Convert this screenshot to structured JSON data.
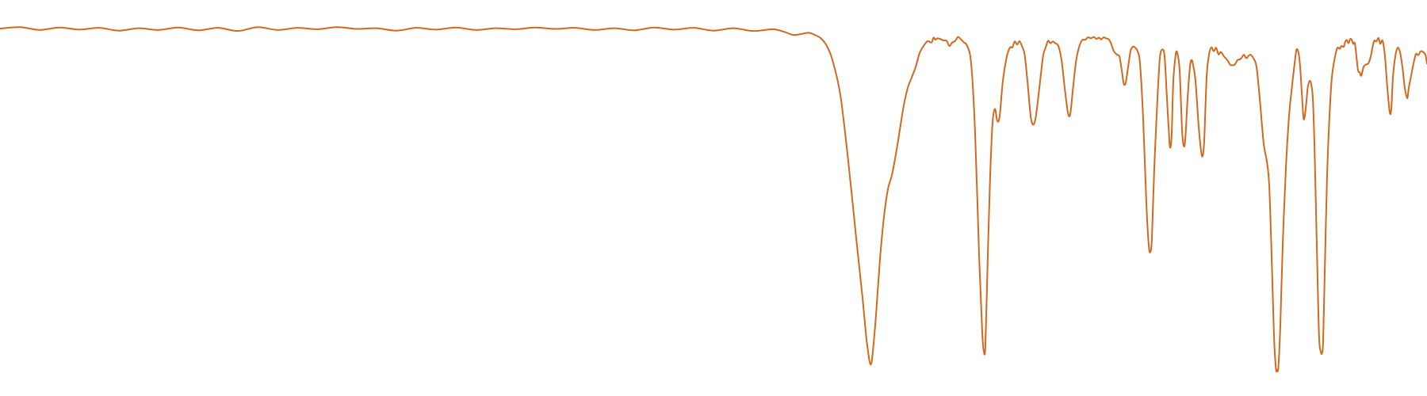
{
  "chart_data": {
    "type": "line",
    "title": "",
    "xlabel": "",
    "ylabel": "",
    "grid": false,
    "legend": "none",
    "xlim": [
      4000,
      400
    ],
    "ylim": [
      0,
      105
    ],
    "colors": {
      "trace": "#d2691e",
      "background": "#ffffff"
    },
    "series": [
      {
        "points": [
          [
            4000,
            100
          ],
          [
            3950,
            100.4
          ],
          [
            3900,
            99.6
          ],
          [
            3850,
            100.3
          ],
          [
            3800,
            99.7
          ],
          [
            3750,
            100.2
          ],
          [
            3700,
            99.4
          ],
          [
            3650,
            100.1
          ],
          [
            3600,
            99.6
          ],
          [
            3550,
            100.3
          ],
          [
            3500,
            99.5
          ],
          [
            3450,
            100.2
          ],
          [
            3400,
            99.3
          ],
          [
            3350,
            100.4
          ],
          [
            3300,
            99.6
          ],
          [
            3250,
            100.2
          ],
          [
            3200,
            99.8
          ],
          [
            3150,
            100.4
          ],
          [
            3100,
            99.9
          ],
          [
            3050,
            100.1
          ],
          [
            3000,
            99.4
          ],
          [
            2950,
            100.2
          ],
          [
            2900,
            99.7
          ],
          [
            2850,
            100.3
          ],
          [
            2800,
            99.6
          ],
          [
            2750,
            100.1
          ],
          [
            2700,
            99.8
          ],
          [
            2650,
            100.3
          ],
          [
            2600,
            99.9
          ],
          [
            2550,
            100.2
          ],
          [
            2500,
            99.6
          ],
          [
            2450,
            100.1
          ],
          [
            2400,
            99.5
          ],
          [
            2350,
            100.3
          ],
          [
            2300,
            99.7
          ],
          [
            2250,
            100.2
          ],
          [
            2200,
            99.4
          ],
          [
            2150,
            100.1
          ],
          [
            2100,
            99.3
          ],
          [
            2050,
            99.8
          ],
          [
            2020,
            99.0
          ],
          [
            2000,
            98.2
          ],
          [
            1980,
            98.4
          ],
          [
            1960,
            98.8
          ],
          [
            1945,
            98.2
          ],
          [
            1930,
            97.3
          ],
          [
            1915,
            95.2
          ],
          [
            1900,
            91
          ],
          [
            1880,
            81
          ],
          [
            1860,
            62
          ],
          [
            1840,
            40
          ],
          [
            1825,
            24
          ],
          [
            1815,
            12
          ],
          [
            1810,
            7.5
          ],
          [
            1806,
            4.5
          ],
          [
            1802,
            4.0
          ],
          [
            1798,
            7.5
          ],
          [
            1790,
            18
          ],
          [
            1780,
            34
          ],
          [
            1770,
            46
          ],
          [
            1760,
            54
          ],
          [
            1750,
            58
          ],
          [
            1740,
            64
          ],
          [
            1730,
            71
          ],
          [
            1720,
            78
          ],
          [
            1710,
            83
          ],
          [
            1700,
            86
          ],
          [
            1690,
            89
          ],
          [
            1680,
            93
          ],
          [
            1670,
            95
          ],
          [
            1660,
            96.4
          ],
          [
            1650,
            96.0
          ],
          [
            1645,
            97.4
          ],
          [
            1640,
            96.8
          ],
          [
            1635,
            97.2
          ],
          [
            1628,
            97.0
          ],
          [
            1620,
            96.6
          ],
          [
            1612,
            96.5
          ],
          [
            1605,
            95.0
          ],
          [
            1598,
            96.0
          ],
          [
            1590,
            96.5
          ],
          [
            1583,
            97.6
          ],
          [
            1575,
            96.8
          ],
          [
            1568,
            96.0
          ],
          [
            1560,
            95.0
          ],
          [
            1550,
            90
          ],
          [
            1540,
            70
          ],
          [
            1530,
            35
          ],
          [
            1522,
            13
          ],
          [
            1518,
            7.5
          ],
          [
            1514,
            9.5
          ],
          [
            1508,
            35
          ],
          [
            1502,
            58
          ],
          [
            1496,
            73
          ],
          [
            1490,
            77
          ],
          [
            1484,
            73.5
          ],
          [
            1478,
            75
          ],
          [
            1470,
            85
          ],
          [
            1460,
            92
          ],
          [
            1452,
            94.6
          ],
          [
            1446,
            94.6
          ],
          [
            1440,
            96.3
          ],
          [
            1434,
            95.4
          ],
          [
            1428,
            96.4
          ],
          [
            1422,
            95.0
          ],
          [
            1415,
            92.5
          ],
          [
            1408,
            85
          ],
          [
            1400,
            75
          ],
          [
            1394,
            72.5
          ],
          [
            1388,
            74
          ],
          [
            1382,
            79
          ],
          [
            1374,
            87
          ],
          [
            1368,
            92.5
          ],
          [
            1362,
            94.6
          ],
          [
            1356,
            96.5
          ],
          [
            1350,
            95.8
          ],
          [
            1344,
            96.3
          ],
          [
            1338,
            95.8
          ],
          [
            1330,
            95.0
          ],
          [
            1322,
            91
          ],
          [
            1314,
            83
          ],
          [
            1306,
            76
          ],
          [
            1300,
            75.5
          ],
          [
            1293,
            83
          ],
          [
            1285,
            91
          ],
          [
            1278,
            94.6
          ],
          [
            1270,
            96.7
          ],
          [
            1262,
            96.8
          ],
          [
            1255,
            97.5
          ],
          [
            1248,
            97.2
          ],
          [
            1240,
            97.6
          ],
          [
            1234,
            97.0
          ],
          [
            1228,
            97.4
          ],
          [
            1222,
            96.9
          ],
          [
            1216,
            97.5
          ],
          [
            1210,
            97.2
          ],
          [
            1204,
            97.0
          ],
          [
            1198,
            96.0
          ],
          [
            1190,
            93.5
          ],
          [
            1182,
            92.5
          ],
          [
            1176,
            92.0
          ],
          [
            1170,
            88
          ],
          [
            1165,
            84.2
          ],
          [
            1160,
            84.5
          ],
          [
            1154,
            89
          ],
          [
            1148,
            93.5
          ],
          [
            1142,
            94.8
          ],
          [
            1136,
            94.5
          ],
          [
            1130,
            93.5
          ],
          [
            1124,
            90
          ],
          [
            1116,
            74
          ],
          [
            1108,
            50
          ],
          [
            1102,
            38
          ],
          [
            1098,
            36
          ],
          [
            1094,
            40
          ],
          [
            1088,
            60
          ],
          [
            1080,
            80
          ],
          [
            1074,
            91.5
          ],
          [
            1068,
            94.0
          ],
          [
            1062,
            92.0
          ],
          [
            1056,
            80
          ],
          [
            1050,
            68
          ],
          [
            1047,
            66
          ],
          [
            1044,
            70
          ],
          [
            1040,
            85
          ],
          [
            1034,
            92.5
          ],
          [
            1030,
            93.0
          ],
          [
            1024,
            88
          ],
          [
            1018,
            71
          ],
          [
            1014,
            66.5
          ],
          [
            1010,
            68
          ],
          [
            1004,
            80
          ],
          [
            998,
            89
          ],
          [
            994,
            91
          ],
          [
            990,
            89.5
          ],
          [
            984,
            85
          ],
          [
            976,
            72
          ],
          [
            970,
            65
          ],
          [
            966,
            63.5
          ],
          [
            962,
            68
          ],
          [
            956,
            86
          ],
          [
            950,
            92.5
          ],
          [
            944,
            94.6
          ],
          [
            938,
            93.5
          ],
          [
            932,
            94.5
          ],
          [
            926,
            92.6
          ],
          [
            920,
            93.3
          ],
          [
            912,
            92.0
          ],
          [
            904,
            91.0
          ],
          [
            896,
            89.6
          ],
          [
            890,
            89.5
          ],
          [
            884,
            89.8
          ],
          [
            878,
            91.0
          ],
          [
            870,
            91.3
          ],
          [
            862,
            92.5
          ],
          [
            856,
            91.5
          ],
          [
            850,
            92.2
          ],
          [
            845,
            92.5
          ],
          [
            838,
            91.5
          ],
          [
            830,
            89
          ],
          [
            822,
            80
          ],
          [
            812,
            67
          ],
          [
            804,
            62
          ],
          [
            798,
            55
          ],
          [
            792,
            35
          ],
          [
            786,
            12
          ],
          [
            781,
            2.5
          ],
          [
            778,
            2.3
          ],
          [
            775,
            3.0
          ],
          [
            770,
            15
          ],
          [
            764,
            38
          ],
          [
            756,
            60
          ],
          [
            748,
            75
          ],
          [
            740,
            84
          ],
          [
            733,
            91
          ],
          [
            729,
            94
          ],
          [
            724,
            93
          ],
          [
            720,
            89
          ],
          [
            715,
            80
          ],
          [
            711,
            74
          ],
          [
            706,
            77
          ],
          [
            701,
            83
          ],
          [
            696,
            85
          ],
          [
            692,
            84
          ],
          [
            688,
            80
          ],
          [
            684,
            67
          ],
          [
            680,
            48
          ],
          [
            676,
            28
          ],
          [
            672,
            11
          ],
          [
            668,
            7.5
          ],
          [
            665,
            7.0
          ],
          [
            662,
            10.5
          ],
          [
            658,
            30
          ],
          [
            652,
            58
          ],
          [
            646,
            75
          ],
          [
            640,
            86
          ],
          [
            632,
            92
          ],
          [
            626,
            94.5
          ],
          [
            620,
            94.2
          ],
          [
            616,
            95.0
          ],
          [
            610,
            94.8
          ],
          [
            606,
            96.3
          ],
          [
            602,
            96.7
          ],
          [
            598,
            95.8
          ],
          [
            594,
            97.0
          ],
          [
            590,
            96.8
          ],
          [
            586,
            95.6
          ],
          [
            582,
            95.8
          ],
          [
            578,
            92
          ],
          [
            574,
            88
          ],
          [
            570,
            87.5
          ],
          [
            566,
            86.5
          ],
          [
            560,
            89
          ],
          [
            554,
            89.7
          ],
          [
            548,
            90.0
          ],
          [
            542,
            92
          ],
          [
            534,
            96.3
          ],
          [
            528,
            96.3
          ],
          [
            522,
            97.3
          ],
          [
            518,
            95.6
          ],
          [
            512,
            96.5
          ],
          [
            506,
            92
          ],
          [
            500,
            83
          ],
          [
            494,
            76
          ],
          [
            490,
            77
          ],
          [
            486,
            86
          ],
          [
            480,
            92
          ],
          [
            474,
            94.5
          ],
          [
            468,
            93.2
          ],
          [
            462,
            89
          ],
          [
            456,
            83
          ],
          [
            450,
            80
          ],
          [
            446,
            83
          ],
          [
            440,
            86.5
          ],
          [
            434,
            90
          ],
          [
            428,
            92.7
          ],
          [
            422,
            92.4
          ],
          [
            416,
            93.5
          ],
          [
            410,
            93.3
          ],
          [
            404,
            92.5
          ],
          [
            400,
            90
          ]
        ]
      }
    ]
  }
}
